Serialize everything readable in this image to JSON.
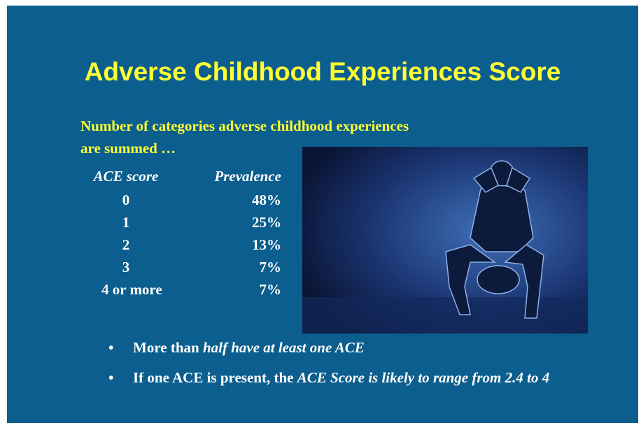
{
  "slide": {
    "title": "Adverse Childhood Experiences Score",
    "intro": [
      "Number  of categories adverse childhood  experiences",
      "are summed  …"
    ],
    "table": {
      "header": [
        "ACE score",
        "Prevalence"
      ],
      "rows": [
        [
          "0",
          "48%"
        ],
        [
          "1",
          "25%"
        ],
        [
          "2",
          "13%"
        ],
        [
          "3",
          "7%"
        ],
        [
          "4 or more",
          "7%"
        ]
      ]
    },
    "bullets": [
      [
        {
          "text": "More than ",
          "italic": false
        },
        {
          "text": "half have at least one ACE",
          "italic": true
        }
      ],
      [
        {
          "text": "If one ACE  is present, the ",
          "italic": false
        },
        {
          "text": "ACE Score is likely to range from 2.4 to 4",
          "italic": true
        }
      ]
    ]
  }
}
